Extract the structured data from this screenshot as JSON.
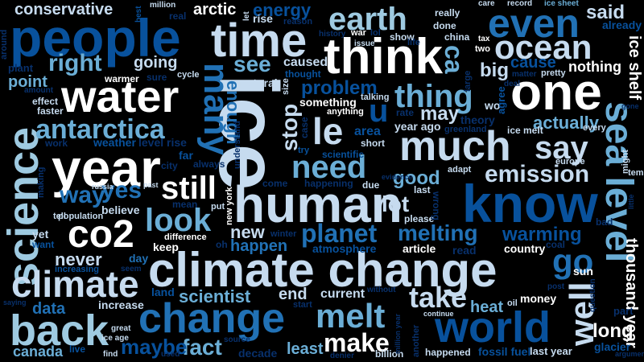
{
  "words": {
    "people": "people",
    "time": "time",
    "earth": "earth",
    "even": "even",
    "ocean": "ocean",
    "think": "think",
    "one": "one",
    "water": "water",
    "ice": "ice",
    "year": "year",
    "human": "human",
    "know": "know",
    "climate_change": "climate change",
    "change": "change",
    "world": "world",
    "science": "science",
    "back": "back",
    "climate": "climate",
    "sea_level": "sea level",
    "much": "much",
    "co2": "co2",
    "antarctica": "antarctica",
    "right": "right",
    "thing": "thing",
    "melt": "melt",
    "say": "say",
    "need": "need",
    "look": "look",
    "still": "still",
    "emission": "emission",
    "many": "many",
    "yes": "yes",
    "way": "way",
    "go": "go",
    "well": "well",
    "take": "take",
    "planet": "planet",
    "melting": "melting",
    "warming": "warming",
    "make": "make",
    "fact": "fact",
    "maybe": "maybe",
    "long": "long",
    "data": "data",
    "canada": "canada",
    "conservative": "conservative",
    "energy": "energy",
    "arctic": "arctic",
    "rise": "rise",
    "said": "said",
    "already": "already",
    "going": "going",
    "see": "see",
    "problem": "problem",
    "cause": "cause",
    "big": "big",
    "nothing": "nothing",
    "point": "point",
    "actually": "actually",
    "may": "may",
    "stop": "stop",
    "le": "le",
    "u": "u",
    "ca": "ca",
    "good": "good",
    "lot": "lot",
    "new": "new",
    "happen": "happen",
    "scientist": "scientist",
    "end": "end",
    "heat": "heat",
    "never": "never",
    "enough": "enough",
    "ice_shelf": "ice shelf",
    "thousand_year": "thousand year",
    "least": "least",
    "current": "current",
    "increase": "increase",
    "country": "country",
    "sun": "sun",
    "article": "article",
    "money": "money",
    "decade": "decade",
    "fossil_fuel": "fossil fuel",
    "last_year": "last year",
    "glacier": "glacier",
    "happened": "happened",
    "billion": "billion",
    "day": "day",
    "keep": "keep",
    "atmosphere": "atmosphere",
    "believe": "believe",
    "yet": "yet",
    "want": "want",
    "land": "land",
    "weather": "weather",
    "level_rise": "level rise",
    "far": "far",
    "city": "city",
    "always": "always",
    "mean": "mean",
    "difference": "difference",
    "put": "put",
    "oh": "oh",
    "winter": "winter",
    "come": "come",
    "happening": "happening",
    "due": "due",
    "evidence": "evidence",
    "last": "last",
    "please": "please",
    "wrong": "wrong",
    "read": "read",
    "coal": "coal",
    "bad": "bad",
    "temperature": "temperature",
    "europe": "europe",
    "might": "might",
    "adapt": "adapt",
    "every": "every",
    "ice_melt": "ice melt",
    "greenland": "greenland",
    "theory": "theory",
    "year_ago": "year ago",
    "rate": "rate",
    "wo": "wo",
    "agree": "agree",
    "caused": "caused",
    "thought": "thought",
    "natural": "natural",
    "size": "size",
    "something": "something",
    "anything": "anything",
    "talking": "talking",
    "area": "area",
    "short": "short",
    "scientific": "scientific",
    "try": "try",
    "case": "case",
    "understand": "understand",
    "new_york": "new york",
    "population": "population",
    "tell": "tell",
    "russia": "russia",
    "past": "past",
    "making": "making",
    "work": "work",
    "faster": "faster",
    "effect": "effect",
    "amount": "amount",
    "warmer": "warmer",
    "sure": "sure",
    "cycle": "cycle",
    "plant": "plant",
    "around": "around",
    "best": "best",
    "million": "million",
    "real": "real",
    "let": "let",
    "reason": "reason",
    "history": "history",
    "war": "war",
    "lol": "lol",
    "issue": "issue",
    "show": "show",
    "life": "life",
    "really": "really",
    "done": "done",
    "china": "china",
    "care": "care",
    "record": "record",
    "ice_sheet": "ice sheet",
    "tax": "tax",
    "two": "two",
    "large": "large",
    "deal": "deal",
    "matter": "matter",
    "pretty": "pretty",
    "gone": "gone",
    "little": "little",
    "question": "question",
    "part": "part",
    "argument": "argument",
    "post": "post",
    "oil": "oil",
    "continue": "continue",
    "another": "another",
    "without": "without",
    "million_year": "million year",
    "start": "start",
    "source": "source",
    "used": "used",
    "find": "find",
    "live": "live",
    "great": "great",
    "ice_age": "ice age",
    "seem": "seem",
    "increasing": "increasing",
    "saying": "saying",
    "denier": "denier"
  }
}
